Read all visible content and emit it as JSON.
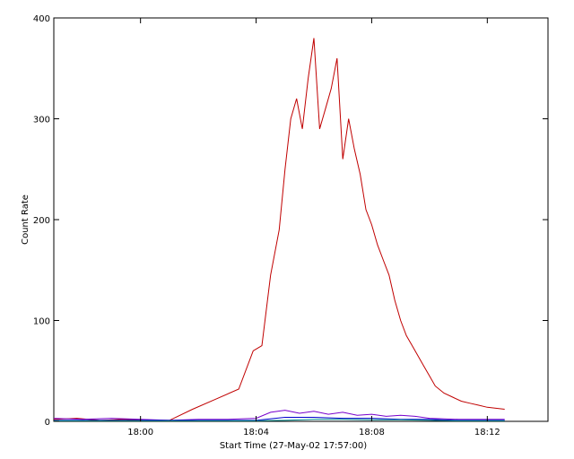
{
  "chart_data": {
    "type": "line",
    "title": "",
    "xlabel": "Start Time (27-May-02 17:57:00)",
    "ylabel": "Count Rate",
    "xlim": [
      "17:57:00",
      "18:14:06"
    ],
    "ylim": [
      0,
      400
    ],
    "grid": false,
    "legend": "none",
    "x_ticks": [
      {
        "time": "18:00",
        "label": "18:00"
      },
      {
        "time": "18:04",
        "label": "18:04"
      },
      {
        "time": "18:08",
        "label": "18:08"
      },
      {
        "time": "18:12",
        "label": "18:12"
      }
    ],
    "y_ticks": [
      0,
      100,
      200,
      300,
      400
    ],
    "series": [
      {
        "color": "#c00000",
        "x": [
          "17:57:00",
          "17:57:48",
          "17:58:36",
          "17:59:24",
          "18:00:12",
          "18:01:00",
          "18:01:48",
          "18:02:36",
          "18:03:24",
          "18:03:54",
          "18:04:12",
          "18:04:30",
          "18:04:48",
          "18:05:00",
          "18:05:12",
          "18:05:24",
          "18:05:36",
          "18:05:48",
          "18:06:00",
          "18:06:12",
          "18:06:24",
          "18:06:36",
          "18:06:48",
          "18:07:00",
          "18:07:12",
          "18:07:24",
          "18:07:36",
          "18:07:48",
          "18:08:00",
          "18:08:12",
          "18:08:24",
          "18:08:36",
          "18:08:48",
          "18:09:00",
          "18:09:12",
          "18:09:24",
          "18:09:36",
          "18:09:48",
          "18:10:00",
          "18:10:12",
          "18:10:30",
          "18:10:48",
          "18:11:06",
          "18:11:24",
          "18:11:42",
          "18:12:00",
          "18:12:18",
          "18:12:36"
        ],
        "y": [
          2,
          3,
          1,
          2,
          1,
          1,
          12,
          22,
          32,
          70,
          75,
          145,
          190,
          250,
          300,
          320,
          290,
          340,
          380,
          290,
          310,
          330,
          360,
          260,
          300,
          270,
          245,
          210,
          195,
          175,
          160,
          145,
          120,
          100,
          85,
          75,
          65,
          55,
          45,
          35,
          28,
          24,
          20,
          18,
          16,
          14,
          13,
          12
        ]
      },
      {
        "color": "#7700cc",
        "x": [
          "17:57:00",
          "17:58:00",
          "17:59:00",
          "18:00:00",
          "18:01:00",
          "18:02:00",
          "18:03:00",
          "18:04:00",
          "18:04:30",
          "18:05:00",
          "18:05:30",
          "18:06:00",
          "18:06:30",
          "18:07:00",
          "18:07:30",
          "18:08:00",
          "18:08:30",
          "18:09:00",
          "18:09:30",
          "18:10:00",
          "18:11:00",
          "18:12:00",
          "18:12:36"
        ],
        "y": [
          3,
          2,
          3,
          2,
          1,
          2,
          2,
          3,
          9,
          11,
          8,
          10,
          7,
          9,
          6,
          7,
          5,
          6,
          5,
          3,
          2,
          2,
          2
        ]
      },
      {
        "color": "#0000cc",
        "x": [
          "17:57:00",
          "17:59:00",
          "18:01:00",
          "18:03:00",
          "18:04:00",
          "18:05:00",
          "18:06:00",
          "18:07:00",
          "18:08:00",
          "18:09:00",
          "18:10:00",
          "18:11:00",
          "18:12:00",
          "18:12:36"
        ],
        "y": [
          1,
          1,
          1,
          1,
          1,
          4,
          4,
          3,
          3,
          2,
          2,
          1,
          1,
          1
        ]
      },
      {
        "color": "#008b8b",
        "x": [
          "17:57:00",
          "17:59:00",
          "18:01:00",
          "18:03:00",
          "18:04:00",
          "18:05:00",
          "18:06:00",
          "18:07:00",
          "18:08:00",
          "18:09:00",
          "18:10:00",
          "18:11:00",
          "18:12:00",
          "18:12:36"
        ],
        "y": [
          0.5,
          0.5,
          0.5,
          0.5,
          0.5,
          1,
          2,
          2,
          1.5,
          1.5,
          1,
          0.5,
          0.5,
          0.5
        ]
      }
    ]
  }
}
